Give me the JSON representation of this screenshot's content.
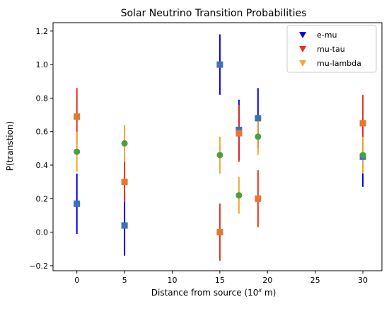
{
  "chart_data": {
    "type": "scatter",
    "title": "Solar Neutrino Transition Probabilities",
    "xlabel_prefix": "Distance from source (10",
    "xlabel_sup": "x",
    "xlabel_suffix": " m)",
    "ylabel": "P(transtion)",
    "xlim": [
      -2.5,
      32.0
    ],
    "ylim": [
      -0.23,
      1.25
    ],
    "xticks": [
      0,
      5,
      10,
      15,
      20,
      25,
      30
    ],
    "yticks": [
      -0.2,
      0.0,
      0.2,
      0.4,
      0.6,
      0.8,
      1.0,
      1.2
    ],
    "ytick_labels": [
      "−0.2",
      "0.0",
      "0.2",
      "0.4",
      "0.6",
      "0.8",
      "1.0",
      "1.2"
    ],
    "legend_position": "top-right",
    "legend": [
      {
        "label": "e-mu",
        "color": "#0000ee"
      },
      {
        "label": "mu-tau",
        "color": "#dd3322"
      },
      {
        "label": "mu-lambda",
        "color": "#f0a830"
      }
    ],
    "series": [
      {
        "name": "e-mu",
        "bar_color": "#0000dd",
        "marker_color": "#3d72b8",
        "points": [
          {
            "x": 0,
            "y": 0.17,
            "err": 0.18
          },
          {
            "x": 5,
            "y": 0.04,
            "err": 0.18
          },
          {
            "x": 15,
            "y": 1.0,
            "err": 0.18
          },
          {
            "x": 17,
            "y": 0.61,
            "err": 0.18
          },
          {
            "x": 19,
            "y": 0.68,
            "err": 0.18
          },
          {
            "x": 30,
            "y": 0.45,
            "err": 0.18
          }
        ]
      },
      {
        "name": "mu-tau",
        "bar_color": "#dd3322",
        "marker_color": "#e8772e",
        "points": [
          {
            "x": 0,
            "y": 0.69,
            "err": 0.17
          },
          {
            "x": 5,
            "y": 0.3,
            "err": 0.12
          },
          {
            "x": 15,
            "y": 0.0,
            "err": 0.17
          },
          {
            "x": 17,
            "y": 0.59,
            "err": 0.17
          },
          {
            "x": 19,
            "y": 0.2,
            "err": 0.17
          },
          {
            "x": 30,
            "y": 0.65,
            "err": 0.17
          }
        ]
      },
      {
        "name": "mu-lambda",
        "bar_color": "#f0a830",
        "marker_color": "#4aa040",
        "points": [
          {
            "x": 0,
            "y": 0.48,
            "err": 0.12
          },
          {
            "x": 5,
            "y": 0.53,
            "err": 0.11
          },
          {
            "x": 15,
            "y": 0.46,
            "err": 0.11
          },
          {
            "x": 17,
            "y": 0.22,
            "err": 0.11
          },
          {
            "x": 19,
            "y": 0.57,
            "err": 0.11
          },
          {
            "x": 30,
            "y": 0.46,
            "err": 0.11
          }
        ]
      }
    ]
  }
}
